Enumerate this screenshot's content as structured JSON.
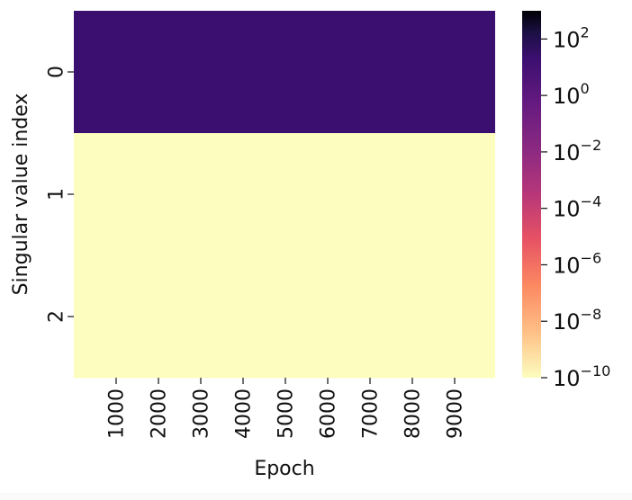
{
  "chart_data": {
    "type": "heatmap",
    "xlabel": "Epoch",
    "ylabel": "Singular value index",
    "x_tick_labels": [
      "1000",
      "2000",
      "3000",
      "4000",
      "5000",
      "6000",
      "7000",
      "8000",
      "9000"
    ],
    "y_tick_labels": [
      "0",
      "1",
      "2"
    ],
    "rows": [
      {
        "index": "0",
        "value": 1
      },
      {
        "index": "1",
        "value": 1e-10
      },
      {
        "index": "2",
        "value": 1e-10
      }
    ],
    "color_scale": "log",
    "colormap": "magma",
    "colorbar": {
      "min": 1e-10,
      "max": 1000,
      "ticks": [
        {
          "base": "10",
          "exp": "2",
          "value": 100
        },
        {
          "base": "10",
          "exp": "0",
          "value": 1
        },
        {
          "base": "10",
          "exp": "−2",
          "value": 0.01
        },
        {
          "base": "10",
          "exp": "−4",
          "value": 0.0001
        },
        {
          "base": "10",
          "exp": "−6",
          "value": 1e-06
        },
        {
          "base": "10",
          "exp": "−8",
          "value": 1e-08
        },
        {
          "base": "10",
          "exp": "−10",
          "value": 1e-10
        }
      ]
    },
    "colors": {
      "row0": "#3b0f70",
      "low": "#fcfdbf"
    }
  }
}
